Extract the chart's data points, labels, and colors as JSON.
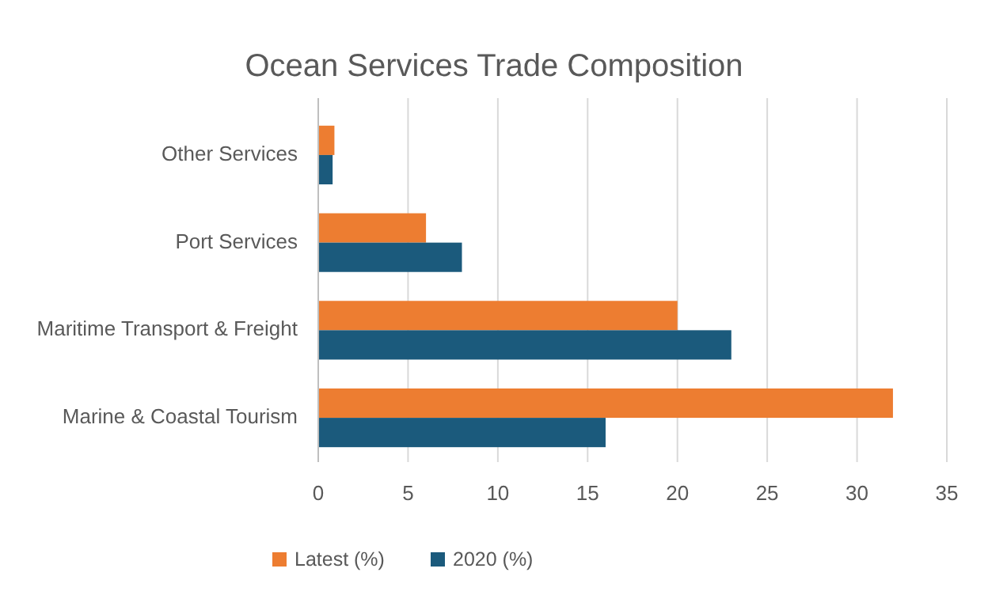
{
  "chart_data": {
    "type": "bar",
    "title": "Ocean Services Trade Composition",
    "orientation": "horizontal",
    "categories": [
      "Other Services",
      "Port Services",
      "Maritime Transport & Freight",
      "Marine & Coastal Tourism"
    ],
    "series": [
      {
        "name": "Latest (%)",
        "color": "#ed7d31",
        "values": [
          0.9,
          6,
          20,
          32
        ]
      },
      {
        "name": "2020 (%)",
        "color": "#1b5a7c",
        "values": [
          0.8,
          8,
          23,
          16
        ]
      }
    ],
    "xlim": [
      0,
      35
    ],
    "xticks": [
      0,
      5,
      10,
      15,
      20,
      25,
      30,
      35
    ],
    "grid": "x",
    "legend": "bottom"
  }
}
